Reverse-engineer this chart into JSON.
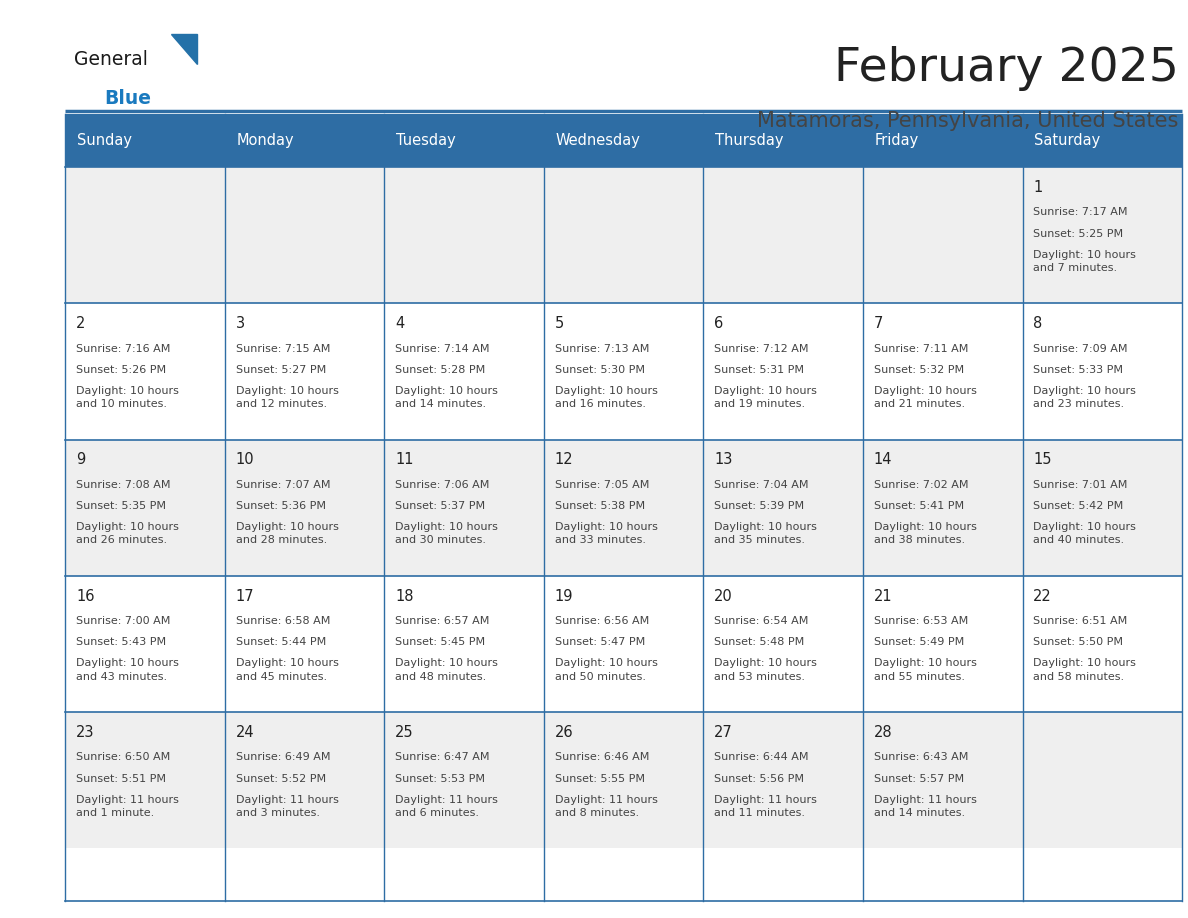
{
  "title": "February 2025",
  "subtitle": "Matamoras, Pennsylvania, United States",
  "header_bg": "#2E6DA4",
  "header_text_color": "#FFFFFF",
  "cell_bg_alt": "#EFEFEF",
  "cell_bg_white": "#FFFFFF",
  "day_headers": [
    "Sunday",
    "Monday",
    "Tuesday",
    "Wednesday",
    "Thursday",
    "Friday",
    "Saturday"
  ],
  "title_color": "#222222",
  "subtitle_color": "#444444",
  "line_color": "#2E6DA4",
  "day_num_color": "#222222",
  "info_color": "#444444",
  "logo_general_color": "#1a1a1a",
  "logo_blue_color": "#1a7abf",
  "fig_width": 11.88,
  "fig_height": 9.18,
  "calendar_data": [
    [
      null,
      null,
      null,
      null,
      null,
      null,
      {
        "day": "1",
        "sunrise": "7:17 AM",
        "sunset": "5:25 PM",
        "daylight": "10 hours\nand 7 minutes."
      }
    ],
    [
      {
        "day": "2",
        "sunrise": "7:16 AM",
        "sunset": "5:26 PM",
        "daylight": "10 hours\nand 10 minutes."
      },
      {
        "day": "3",
        "sunrise": "7:15 AM",
        "sunset": "5:27 PM",
        "daylight": "10 hours\nand 12 minutes."
      },
      {
        "day": "4",
        "sunrise": "7:14 AM",
        "sunset": "5:28 PM",
        "daylight": "10 hours\nand 14 minutes."
      },
      {
        "day": "5",
        "sunrise": "7:13 AM",
        "sunset": "5:30 PM",
        "daylight": "10 hours\nand 16 minutes."
      },
      {
        "day": "6",
        "sunrise": "7:12 AM",
        "sunset": "5:31 PM",
        "daylight": "10 hours\nand 19 minutes."
      },
      {
        "day": "7",
        "sunrise": "7:11 AM",
        "sunset": "5:32 PM",
        "daylight": "10 hours\nand 21 minutes."
      },
      {
        "day": "8",
        "sunrise": "7:09 AM",
        "sunset": "5:33 PM",
        "daylight": "10 hours\nand 23 minutes."
      }
    ],
    [
      {
        "day": "9",
        "sunrise": "7:08 AM",
        "sunset": "5:35 PM",
        "daylight": "10 hours\nand 26 minutes."
      },
      {
        "day": "10",
        "sunrise": "7:07 AM",
        "sunset": "5:36 PM",
        "daylight": "10 hours\nand 28 minutes."
      },
      {
        "day": "11",
        "sunrise": "7:06 AM",
        "sunset": "5:37 PM",
        "daylight": "10 hours\nand 30 minutes."
      },
      {
        "day": "12",
        "sunrise": "7:05 AM",
        "sunset": "5:38 PM",
        "daylight": "10 hours\nand 33 minutes."
      },
      {
        "day": "13",
        "sunrise": "7:04 AM",
        "sunset": "5:39 PM",
        "daylight": "10 hours\nand 35 minutes."
      },
      {
        "day": "14",
        "sunrise": "7:02 AM",
        "sunset": "5:41 PM",
        "daylight": "10 hours\nand 38 minutes."
      },
      {
        "day": "15",
        "sunrise": "7:01 AM",
        "sunset": "5:42 PM",
        "daylight": "10 hours\nand 40 minutes."
      }
    ],
    [
      {
        "day": "16",
        "sunrise": "7:00 AM",
        "sunset": "5:43 PM",
        "daylight": "10 hours\nand 43 minutes."
      },
      {
        "day": "17",
        "sunrise": "6:58 AM",
        "sunset": "5:44 PM",
        "daylight": "10 hours\nand 45 minutes."
      },
      {
        "day": "18",
        "sunrise": "6:57 AM",
        "sunset": "5:45 PM",
        "daylight": "10 hours\nand 48 minutes."
      },
      {
        "day": "19",
        "sunrise": "6:56 AM",
        "sunset": "5:47 PM",
        "daylight": "10 hours\nand 50 minutes."
      },
      {
        "day": "20",
        "sunrise": "6:54 AM",
        "sunset": "5:48 PM",
        "daylight": "10 hours\nand 53 minutes."
      },
      {
        "day": "21",
        "sunrise": "6:53 AM",
        "sunset": "5:49 PM",
        "daylight": "10 hours\nand 55 minutes."
      },
      {
        "day": "22",
        "sunrise": "6:51 AM",
        "sunset": "5:50 PM",
        "daylight": "10 hours\nand 58 minutes."
      }
    ],
    [
      {
        "day": "23",
        "sunrise": "6:50 AM",
        "sunset": "5:51 PM",
        "daylight": "11 hours\nand 1 minute."
      },
      {
        "day": "24",
        "sunrise": "6:49 AM",
        "sunset": "5:52 PM",
        "daylight": "11 hours\nand 3 minutes."
      },
      {
        "day": "25",
        "sunrise": "6:47 AM",
        "sunset": "5:53 PM",
        "daylight": "11 hours\nand 6 minutes."
      },
      {
        "day": "26",
        "sunrise": "6:46 AM",
        "sunset": "5:55 PM",
        "daylight": "11 hours\nand 8 minutes."
      },
      {
        "day": "27",
        "sunrise": "6:44 AM",
        "sunset": "5:56 PM",
        "daylight": "11 hours\nand 11 minutes."
      },
      {
        "day": "28",
        "sunrise": "6:43 AM",
        "sunset": "5:57 PM",
        "daylight": "11 hours\nand 14 minutes."
      },
      null
    ]
  ]
}
